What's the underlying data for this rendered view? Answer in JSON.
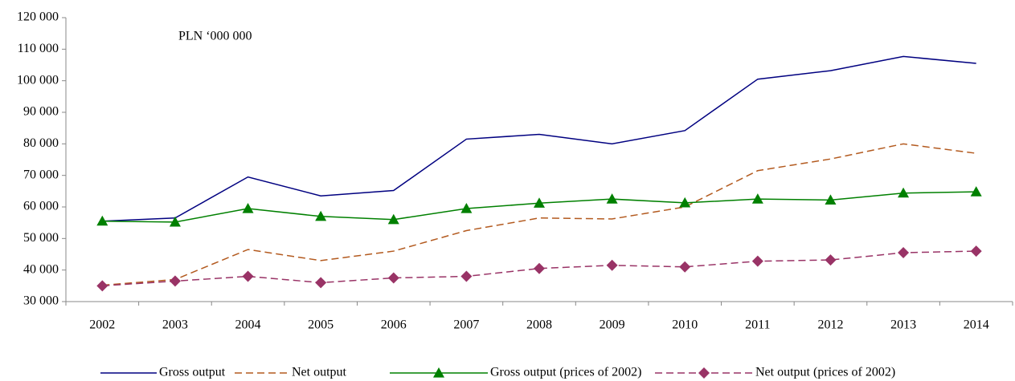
{
  "chart_data": {
    "type": "line",
    "annotation": "PLN ‘000 000",
    "categories": [
      "2002",
      "2003",
      "2004",
      "2005",
      "2006",
      "2007",
      "2008",
      "2009",
      "2010",
      "2011",
      "2012",
      "2013",
      "2014"
    ],
    "series": [
      {
        "name": "Gross output",
        "color": "#000080",
        "dashed": false,
        "marker": null,
        "values": [
          55500,
          56500,
          69500,
          63500,
          65200,
          81500,
          83000,
          80000,
          84200,
          100500,
          103200,
          107700,
          105500
        ]
      },
      {
        "name": "Net output",
        "color": "#b35a1f",
        "dashed": true,
        "marker": null,
        "values": [
          35200,
          37000,
          46500,
          43000,
          46000,
          52500,
          56500,
          56200,
          60000,
          71500,
          75200,
          80000,
          77000
        ]
      },
      {
        "name": "Gross output (prices of 2002)",
        "color": "#008000",
        "dashed": false,
        "marker": "triangle",
        "values": [
          55500,
          55200,
          59500,
          57000,
          56000,
          59500,
          61200,
          62500,
          61300,
          62500,
          62200,
          64400,
          64800
        ]
      },
      {
        "name": "Net output (prices of 2002)",
        "color": "#993366",
        "dashed": true,
        "marker": "diamond",
        "values": [
          35000,
          36500,
          38000,
          36000,
          37500,
          38000,
          40500,
          41500,
          41000,
          42800,
          43200,
          45500,
          46000
        ]
      }
    ],
    "ylim": [
      30000,
      120000
    ],
    "yticks": [
      {
        "value": 30000,
        "label": "30 000"
      },
      {
        "value": 40000,
        "label": "40 000"
      },
      {
        "value": 50000,
        "label": "50 000"
      },
      {
        "value": 60000,
        "label": "60 000"
      },
      {
        "value": 70000,
        "label": "70 000"
      },
      {
        "value": 80000,
        "label": "80 000"
      },
      {
        "value": 90000,
        "label": "90 000"
      },
      {
        "value": 100000,
        "label": "100 000"
      },
      {
        "value": 110000,
        "label": "110 000"
      },
      {
        "value": 120000,
        "label": "120 000"
      }
    ],
    "grid": false,
    "legend": "bottom"
  }
}
